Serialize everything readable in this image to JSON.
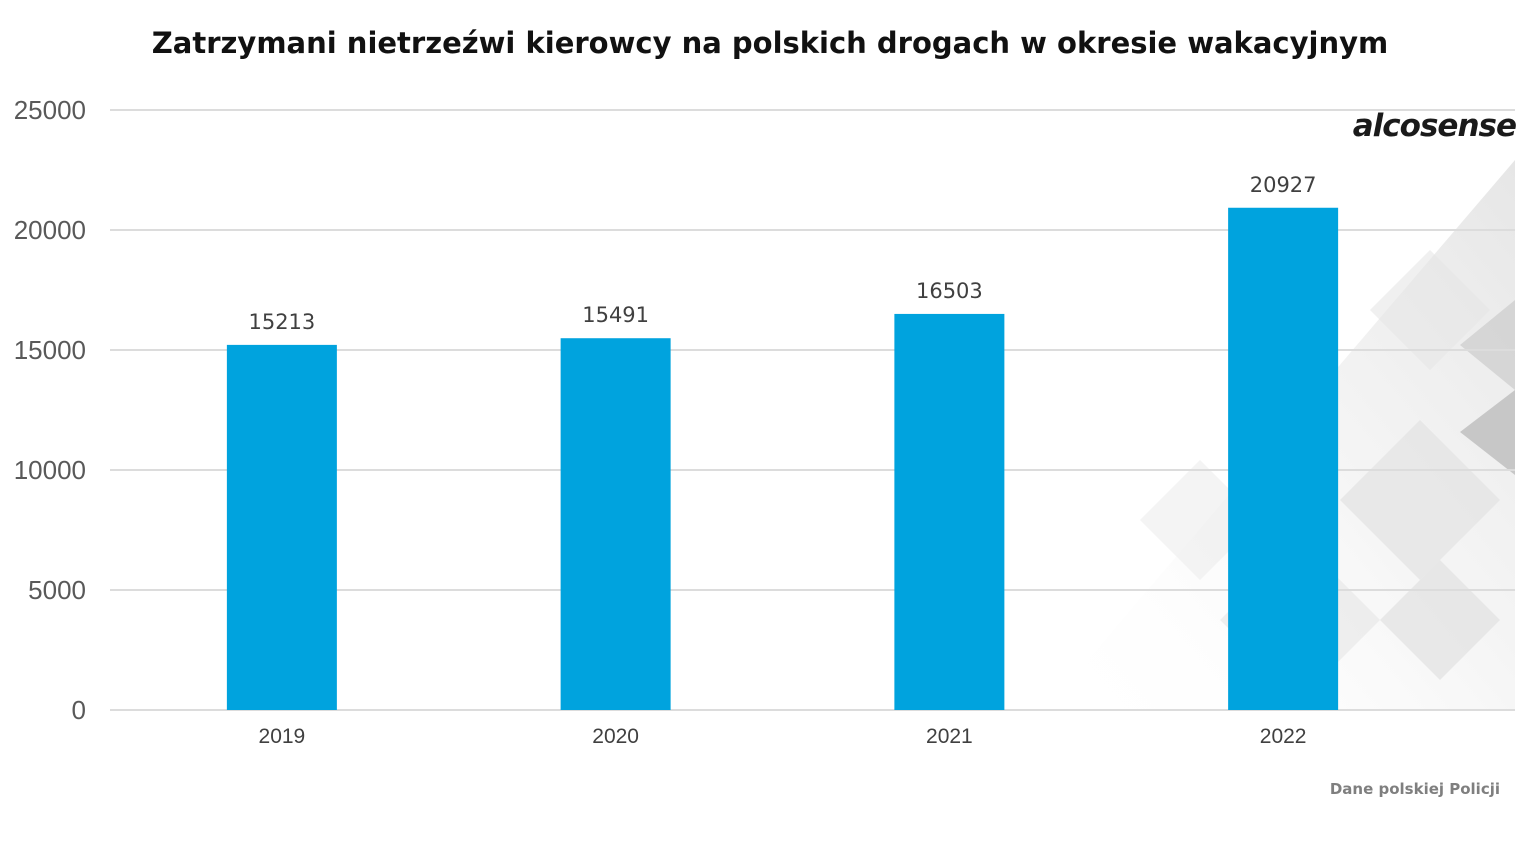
{
  "chart_data": {
    "type": "bar",
    "title": "Zatrzymani nietrzeźwi kierowcy na polskich drogach w okresie wakacyjnym",
    "categories": [
      "2019",
      "2020",
      "2021",
      "2022"
    ],
    "values": [
      15213,
      15491,
      16503,
      20927
    ],
    "data_labels": [
      "15213",
      "15491",
      "16503",
      "20927"
    ],
    "xlabel": "",
    "ylabel": "",
    "ylim": [
      0,
      25000
    ],
    "yticks": [
      "0",
      "5000",
      "10000",
      "15000",
      "20000",
      "25000"
    ],
    "grid": true,
    "bar_color": "#00a3de",
    "grid_color": "#dcdcdc"
  },
  "source_note": "Dane polskiej Policji",
  "brand_logo": "alcosense"
}
